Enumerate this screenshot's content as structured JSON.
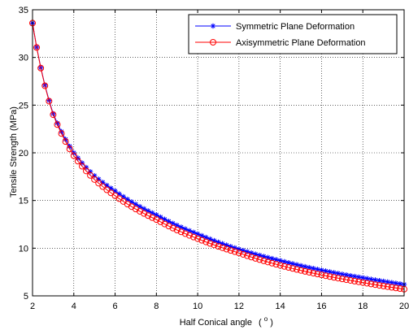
{
  "chart_data": {
    "type": "line",
    "xlabel": "Half Conical angle",
    "xlabel_unit": "( o )",
    "ylabel": "Tensile Strength  (MPa)",
    "xlim": [
      2,
      20
    ],
    "ylim": [
      5,
      35
    ],
    "xticks": [
      2,
      4,
      6,
      8,
      10,
      12,
      14,
      16,
      18,
      20
    ],
    "yticks": [
      5,
      10,
      15,
      20,
      25,
      30,
      35
    ],
    "grid": true,
    "legend_position": "top-right",
    "series": [
      {
        "name": "Symmetric Plane Deformation",
        "color": "#0000ff",
        "marker": "star",
        "x_start": 2,
        "x_end": 20,
        "x_step": 0.2,
        "anchors_x": [
          2,
          3,
          4,
          5,
          6,
          8,
          10,
          12,
          14,
          16,
          18,
          20
        ],
        "anchors_y": [
          33.6,
          24.1,
          20.0,
          17.6,
          16.0,
          13.5,
          11.5,
          9.9,
          8.7,
          7.7,
          6.9,
          6.2
        ]
      },
      {
        "name": "Axisymmetric Plane Deformation",
        "color": "#ff0000",
        "marker": "circle",
        "x_start": 2,
        "x_end": 20,
        "x_step": 0.2,
        "anchors_x": [
          2,
          3,
          4,
          5,
          6,
          8,
          10,
          12,
          14,
          16,
          18,
          20
        ],
        "anchors_y": [
          33.6,
          24.0,
          19.7,
          17.2,
          15.5,
          13.0,
          11.0,
          9.5,
          8.2,
          7.2,
          6.4,
          5.7
        ]
      }
    ]
  }
}
